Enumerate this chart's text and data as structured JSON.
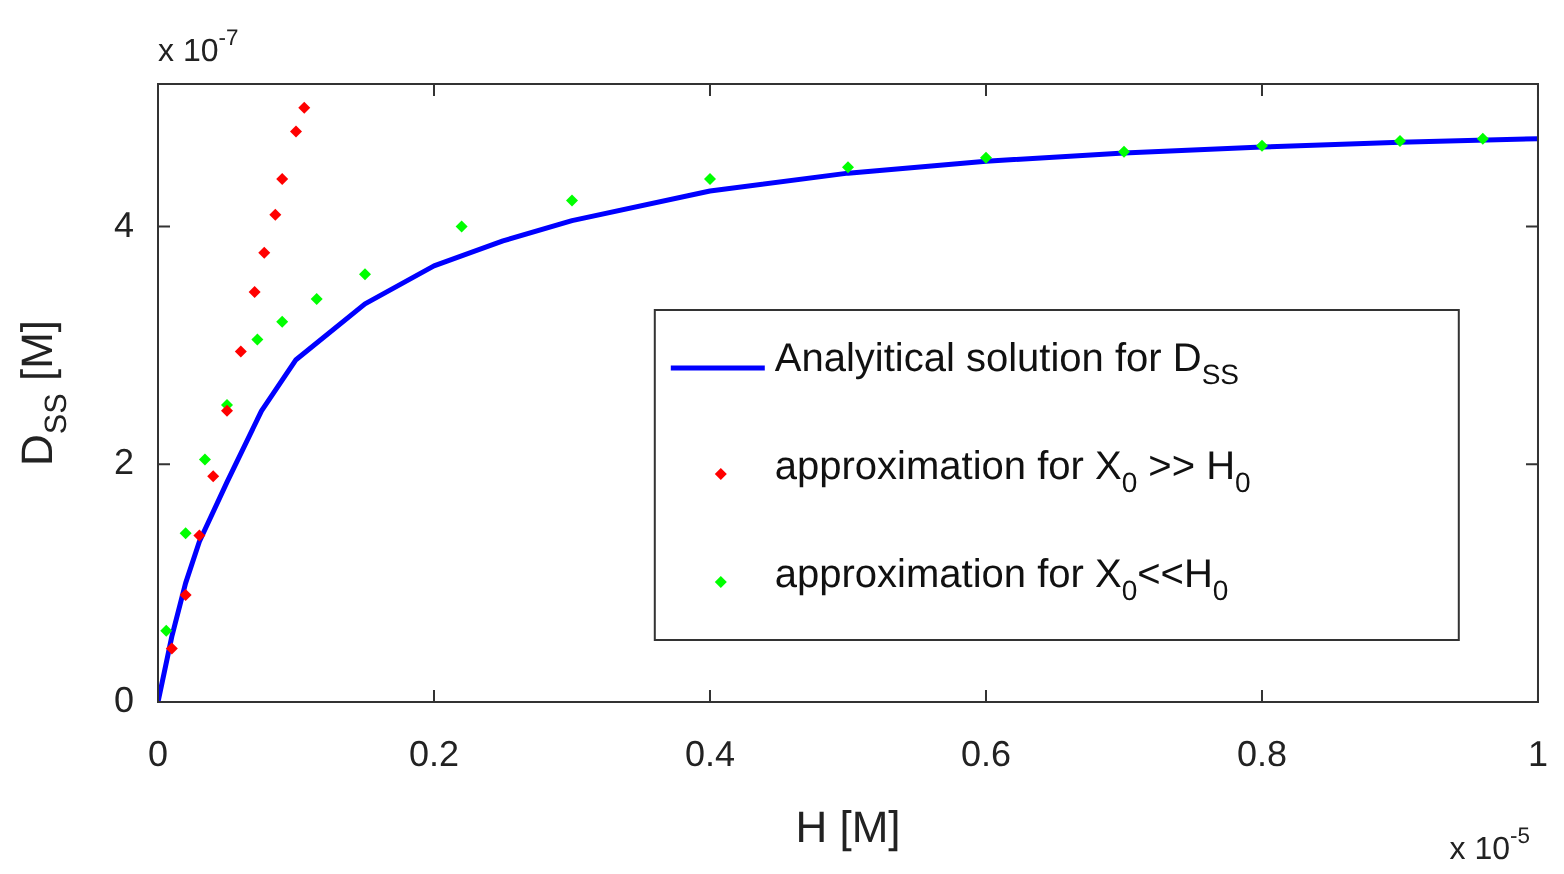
{
  "chart_data": {
    "type": "line",
    "xlabel": "H [M]",
    "ylabel": "D$_{SS}$ [M]",
    "xlim": [
      0,
      1
    ],
    "xticks": [
      0,
      0.2,
      0.4,
      0.6,
      0.8,
      1
    ],
    "ylim": [
      0,
      5.2
    ],
    "yticks": [
      0,
      2,
      4
    ],
    "grid": false,
    "legend": "right",
    "annotations": [
      "x 10$^{-7}$",
      "x 10$^{-5}$"
    ],
    "series": [
      {
        "name": "Analyitical solution for D$_{SS}$",
        "marker": "none",
        "line_style": "solid",
        "color": "#0000ff",
        "x": [
          0,
          0.01,
          0.02,
          0.03,
          0.05,
          0.075,
          0.1,
          0.15,
          0.2,
          0.25,
          0.3,
          0.4,
          0.5,
          0.6,
          0.7,
          0.8,
          0.9,
          1.0
        ],
        "values": [
          0,
          0.55,
          1.0,
          1.35,
          1.85,
          2.45,
          2.88,
          3.35,
          3.67,
          3.88,
          4.05,
          4.3,
          4.45,
          4.55,
          4.62,
          4.67,
          4.71,
          4.74
        ]
      },
      {
        "name": "approximation for X$_{0}$ >> H$_{0}$",
        "type": "scatter",
        "marker": "diamond",
        "color": "#ff0000",
        "x": [
          0.01,
          0.02,
          0.03,
          0.04,
          0.05,
          0.06,
          0.07,
          0.077,
          0.085,
          0.09,
          0.1,
          0.106
        ],
        "values": [
          0.45,
          0.9,
          1.4,
          1.9,
          2.45,
          2.95,
          3.45,
          3.78,
          4.1,
          4.4,
          4.8,
          5.0
        ]
      },
      {
        "name": "approximation for X$_{0}$<<H$_{0}$",
        "type": "scatter",
        "marker": "diamond",
        "color": "#00ff00",
        "x": [
          0.006,
          0.02,
          0.034,
          0.05,
          0.072,
          0.09,
          0.115,
          0.15,
          0.22,
          0.3,
          0.4,
          0.5,
          0.6,
          0.7,
          0.8,
          0.9,
          0.96
        ],
        "values": [
          0.6,
          1.42,
          2.04,
          2.5,
          3.05,
          3.2,
          3.39,
          3.6,
          4.0,
          4.22,
          4.4,
          4.5,
          4.58,
          4.63,
          4.68,
          4.72,
          4.74
        ]
      }
    ]
  }
}
